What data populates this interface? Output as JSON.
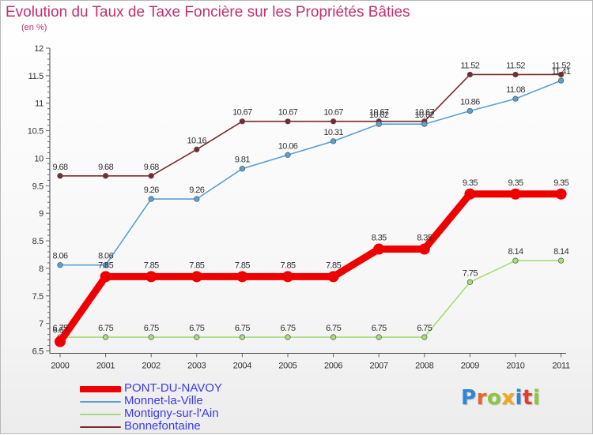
{
  "header": {
    "title": "Evolution du Taux de Taxe Foncière sur les Propriétés Bâties",
    "subtitle": "(en %)"
  },
  "logo": {
    "text": "Proxiti",
    "letter_colors": [
      "#2e86d6",
      "#e8652a",
      "#8cc63f",
      "#f2a71b",
      "#2e86d6",
      "#e63a2b",
      "#8cc63f"
    ]
  },
  "chart_data": {
    "type": "line",
    "title": "Evolution du Taux de Taxe Foncière sur les Propriétés Bâties",
    "ylabel": "(en %)",
    "xlabel": "",
    "ylim": [
      6.5,
      12
    ],
    "yticks": [
      "6.5",
      "7",
      "7.5",
      "8",
      "8.5",
      "9",
      "9.5",
      "10",
      "10.5",
      "11",
      "11.5",
      "12"
    ],
    "grid": false,
    "legend_position": "bottom-left",
    "x": [
      "2000",
      "2001",
      "2002",
      "2003",
      "2004",
      "2005",
      "2006",
      "2007",
      "2008",
      "2009",
      "2010",
      "2011"
    ],
    "series": [
      {
        "name": "Bonnefontaine",
        "color": "#7a2a2e",
        "values": [
          9.68,
          9.68,
          9.68,
          10.16,
          10.67,
          10.67,
          10.67,
          10.67,
          10.67,
          11.52,
          11.52,
          11.52
        ],
        "labels": [
          "9.68",
          "9.68",
          "9.68",
          "10.16",
          "10.67",
          "10.67",
          "10.67",
          "10.67",
          "10.67",
          "11.52",
          "11.52",
          "11.52"
        ]
      },
      {
        "name": "Monnet-la-Ville",
        "color": "#5aa0d6",
        "values": [
          8.06,
          8.06,
          9.26,
          9.26,
          9.81,
          10.06,
          10.31,
          10.62,
          10.62,
          10.86,
          11.08,
          11.41
        ],
        "labels": [
          "8.06",
          "8.06",
          "9.26",
          "9.26",
          "9.81",
          "10.06",
          "10.31",
          "10.62",
          "10.62",
          "10.86",
          "11.08",
          "11.41"
        ]
      },
      {
        "name": "Montigny-sur-l'Ain",
        "color": "#a8dc7a",
        "values": [
          6.75,
          6.75,
          6.75,
          6.75,
          6.75,
          6.75,
          6.75,
          6.75,
          6.75,
          7.75,
          8.14,
          8.14
        ],
        "labels": [
          "6.75",
          "6.75",
          "6.75",
          "6.75",
          "6.75",
          "6.75",
          "6.75",
          "6.75",
          "6.75",
          "7.75",
          "8.14",
          "8.14"
        ]
      },
      {
        "name": "PONT-DU-NAVOY",
        "color": "#ee0000",
        "values": [
          6.67,
          7.85,
          7.85,
          7.85,
          7.85,
          7.85,
          7.85,
          8.35,
          8.35,
          9.35,
          9.35,
          9.35
        ],
        "labels": [
          "6.67",
          "7.85",
          "7.85",
          "7.85",
          "7.85",
          "7.85",
          "7.85",
          "8.35",
          "8.35",
          "9.35",
          "9.35",
          "9.35"
        ]
      }
    ],
    "legend": [
      "PONT-DU-NAVOY",
      "Monnet-la-Ville",
      "Montigny-sur-l'Ain",
      "Bonnefontaine"
    ]
  }
}
